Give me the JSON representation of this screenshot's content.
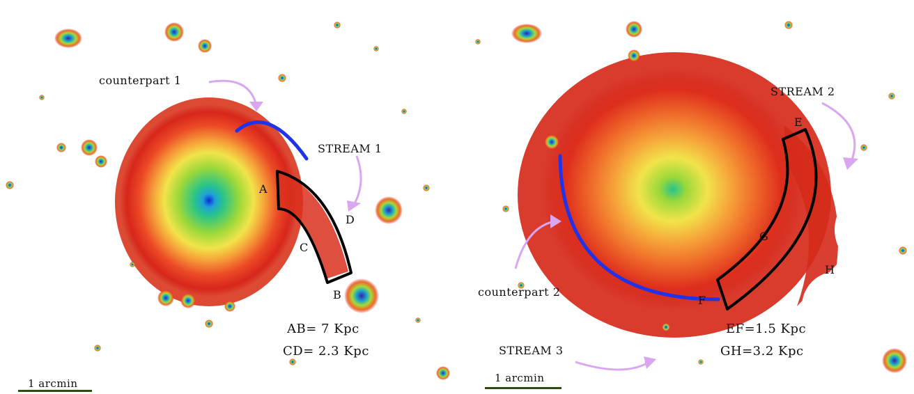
{
  "left_panel": {
    "labels": {
      "counterpart": "counterpart 1",
      "stream": "STREAM 1",
      "A": "A",
      "B": "B",
      "C": "C",
      "D": "D",
      "ab": "AB= 7 Kpc",
      "cd": "CD= 2.3 Kpc",
      "scale": "1 arcmin"
    }
  },
  "right_panel": {
    "labels": {
      "counterpart": "counterpart 2",
      "stream2": "STREAM 2",
      "stream3": "STREAM 3",
      "E": "E",
      "F": "F",
      "G": "G",
      "H": "H",
      "ef": "EF=1.5 Kpc",
      "gh": "GH=3.2 Kpc",
      "scale": "1 arcmin"
    }
  },
  "colors": {
    "stream_line": "#2033e8",
    "region_outline": "#000000",
    "annotation_arrow": "#d9a6f2",
    "scale_bar": "#2e4a14"
  }
}
